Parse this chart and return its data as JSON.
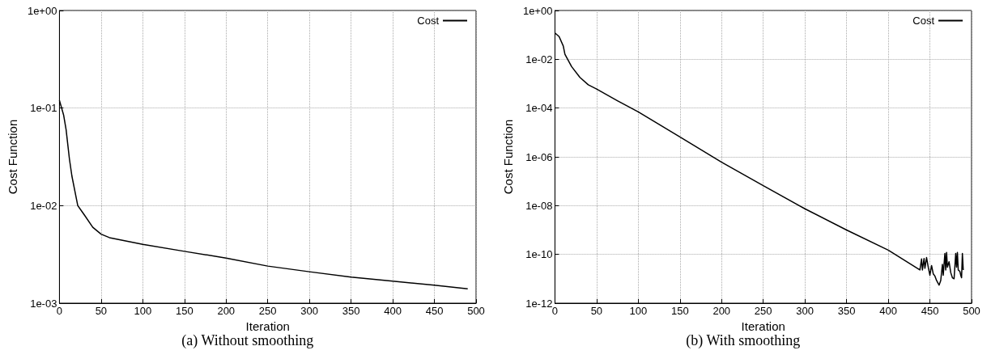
{
  "chart_data": [
    {
      "type": "line",
      "xlabel": "Iteration",
      "ylabel": "Cost Function",
      "annotations": [
        "(a) Without smoothing"
      ],
      "log": "y",
      "grid": true,
      "legend": "top right",
      "series": [
        {
          "name": "Cost",
          "color": "#000000",
          "x": [
            0,
            5,
            8,
            12,
            15,
            22,
            30,
            40,
            50,
            60,
            100,
            150,
            200,
            250,
            300,
            350,
            400,
            450,
            490
          ],
          "values": [
            0.12,
            0.085,
            0.06,
            0.03,
            0.02,
            0.01,
            0.008,
            0.006,
            0.0051,
            0.0047,
            0.004,
            0.0034,
            0.0029,
            0.0024,
            0.0021,
            0.00185,
            0.00168,
            0.00153,
            0.0014
          ]
        }
      ],
      "xlim": [
        0,
        500
      ],
      "xticks": [
        0,
        50,
        100,
        150,
        200,
        250,
        300,
        350,
        400,
        450,
        500
      ],
      "ylim": [
        0.001,
        1
      ],
      "yticks": [
        {
          "value": 0.001,
          "label": "1e-03"
        },
        {
          "value": 0.01,
          "label": "1e-02"
        },
        {
          "value": 0.1,
          "label": "1e-01"
        },
        {
          "value": 1,
          "label": "1e+00"
        }
      ]
    },
    {
      "type": "line",
      "xlabel": "Iteration",
      "ylabel": "Cost Function",
      "annotations": [
        "(b) With smoothing"
      ],
      "log": "y",
      "grid": true,
      "legend": "top right",
      "series": [
        {
          "name": "Cost",
          "color": "#000000",
          "x": [
            0,
            5,
            10,
            12,
            20,
            30,
            40,
            50,
            75,
            100,
            150,
            200,
            250,
            300,
            350,
            400,
            438,
            440,
            441,
            443,
            444,
            446,
            448,
            450,
            452,
            454,
            456,
            458,
            461,
            463,
            465,
            466,
            468,
            469,
            470,
            471,
            473,
            475,
            477,
            479,
            481,
            482,
            483,
            484,
            486,
            487,
            488,
            489,
            490
          ],
          "values": [
            0.12,
            0.085,
            0.035,
            0.016,
            0.005,
            0.0018,
            0.0009,
            0.0006,
            0.0002,
            7e-05,
            6.5e-06,
            6e-07,
            6.6e-08,
            7.4e-09,
            1e-09,
            1.5e-10,
            2.3e-11,
            6.5e-11,
            2.3e-11,
            6.8e-11,
            2.7e-11,
            7.4e-11,
            3e-11,
            1.4e-11,
            3.5e-11,
            1.6e-11,
            1.3e-11,
            8.5e-12,
            5.5e-12,
            8.5e-12,
            3.9e-11,
            1.4e-11,
            1.1e-10,
            2.3e-11,
            1.2e-10,
            3e-11,
            5e-11,
            1.8e-11,
            1.1e-11,
            1e-11,
            1.1e-10,
            3e-11,
            1.2e-10,
            2.3e-11,
            2e-11,
            1.4e-11,
            1.1e-11,
            1.1e-10,
            2.3e-11
          ]
        }
      ],
      "xlim": [
        0,
        500
      ],
      "xticks": [
        0,
        50,
        100,
        150,
        200,
        250,
        300,
        350,
        400,
        450,
        500
      ],
      "ylim": [
        1e-12,
        1
      ],
      "yticks": [
        {
          "value": 1e-12,
          "label": "1e-12"
        },
        {
          "value": 1e-10,
          "label": "1e-10"
        },
        {
          "value": 1e-08,
          "label": "1e-08"
        },
        {
          "value": 1e-06,
          "label": "1e-06"
        },
        {
          "value": 0.0001,
          "label": "1e-04"
        },
        {
          "value": 0.01,
          "label": "1e-02"
        },
        {
          "value": 1,
          "label": "1e+00"
        }
      ]
    }
  ]
}
